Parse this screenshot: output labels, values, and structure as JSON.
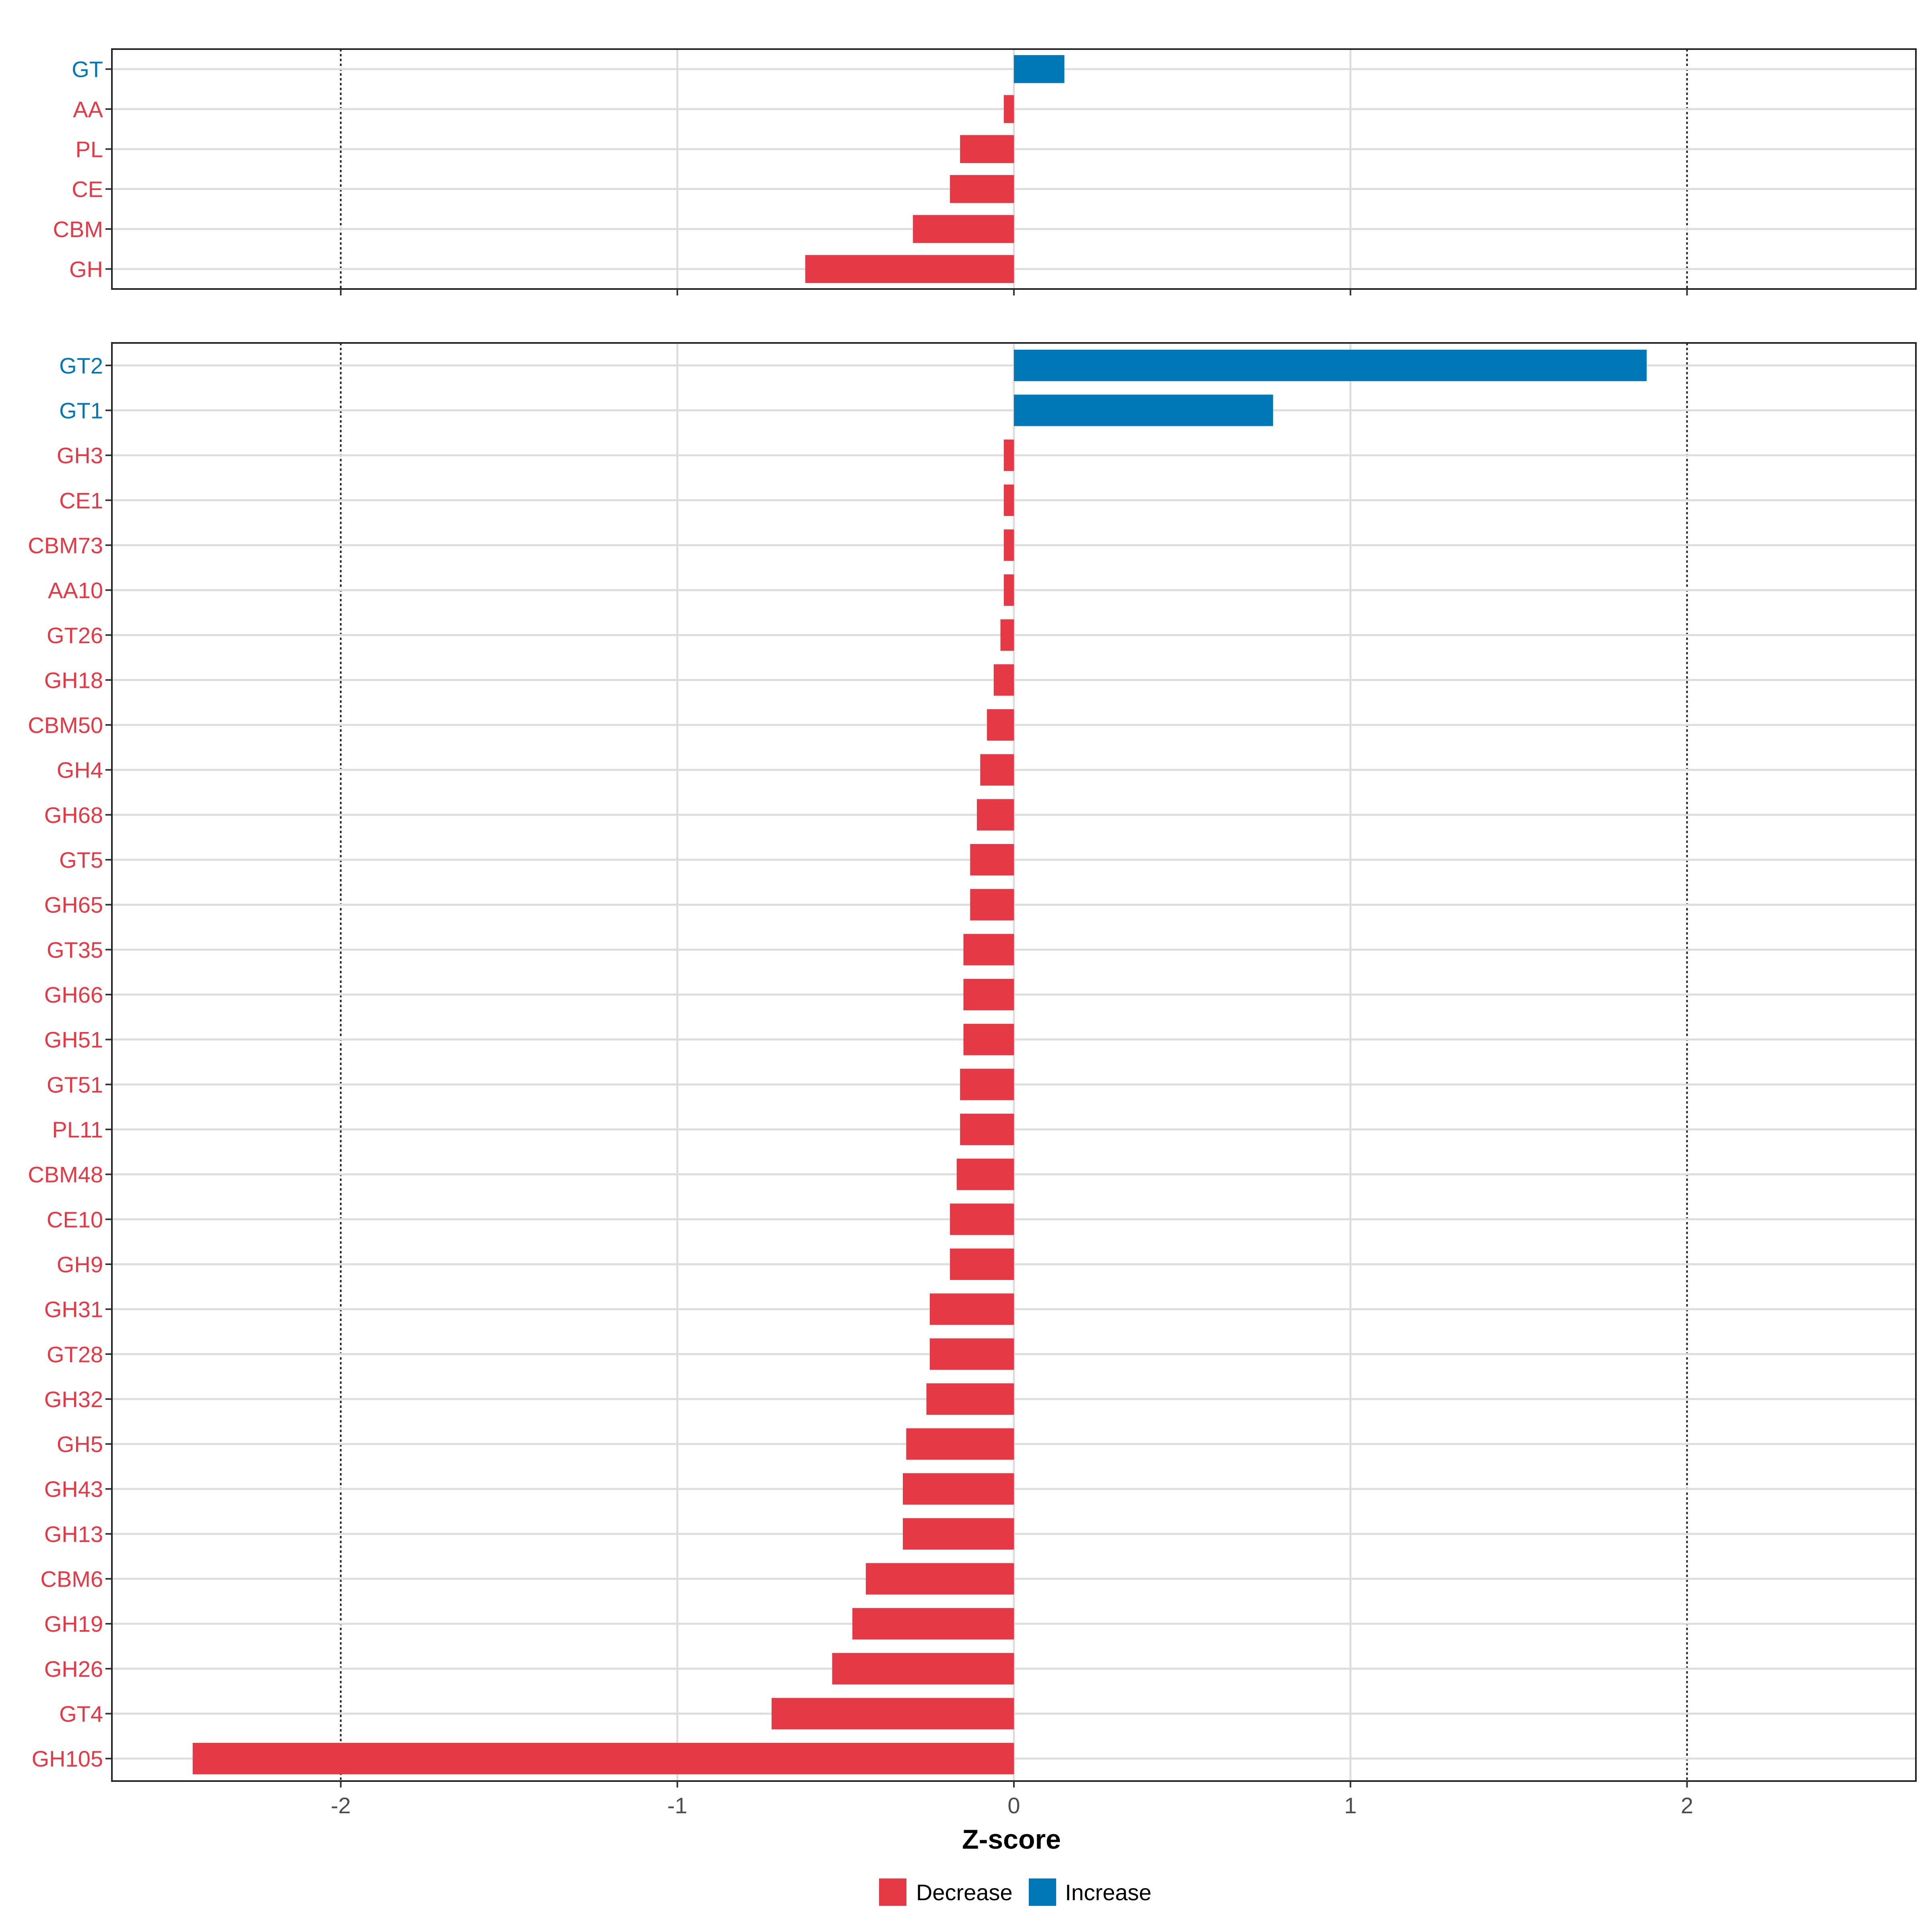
{
  "chart_data": [
    {
      "type": "bar",
      "orientation": "horizontal",
      "categories": [
        "GT",
        "AA",
        "PL",
        "CE",
        "CBM",
        "GH"
      ],
      "values": [
        0.15,
        -0.03,
        -0.16,
        -0.19,
        -0.3,
        -0.62
      ],
      "xlim": [
        -2.68,
        2.68
      ],
      "xticks": [
        -2,
        -1,
        0,
        1,
        2
      ],
      "reference_lines": [
        -2,
        2
      ],
      "grid": true
    },
    {
      "type": "bar",
      "orientation": "horizontal",
      "categories": [
        "GT2",
        "GT1",
        "GH3",
        "CE1",
        "CBM73",
        "AA10",
        "GT26",
        "GH18",
        "CBM50",
        "GH4",
        "GH68",
        "GT5",
        "GH65",
        "GT35",
        "GH66",
        "GH51",
        "GT51",
        "PL11",
        "CBM48",
        "CE10",
        "GH9",
        "GH31",
        "GT28",
        "GH32",
        "GH5",
        "GH43",
        "GH13",
        "CBM6",
        "GH19",
        "GH26",
        "GT4",
        "GH105"
      ],
      "values": [
        1.88,
        0.77,
        -0.03,
        -0.03,
        -0.03,
        -0.03,
        -0.04,
        -0.06,
        -0.08,
        -0.1,
        -0.11,
        -0.13,
        -0.13,
        -0.15,
        -0.15,
        -0.15,
        -0.16,
        -0.16,
        -0.17,
        -0.19,
        -0.19,
        -0.25,
        -0.25,
        -0.26,
        -0.32,
        -0.33,
        -0.33,
        -0.44,
        -0.48,
        -0.54,
        -0.72,
        -2.44
      ],
      "xlim": [
        -2.68,
        2.68
      ],
      "xticks": [
        -2,
        -1,
        0,
        1,
        2
      ],
      "tick_labels": [
        "-2",
        "-1",
        "0",
        "1",
        "2"
      ],
      "reference_lines": [
        -2,
        2
      ],
      "grid": true,
      "xlabel": "Z-score"
    }
  ],
  "legend": {
    "placement": "bottom",
    "items": [
      {
        "label": "Decrease",
        "color": "#E63946"
      },
      {
        "label": "Increase",
        "color": "#0077B6"
      }
    ]
  },
  "colors": {
    "decrease": "#E63946",
    "increase": "#0077B6"
  }
}
